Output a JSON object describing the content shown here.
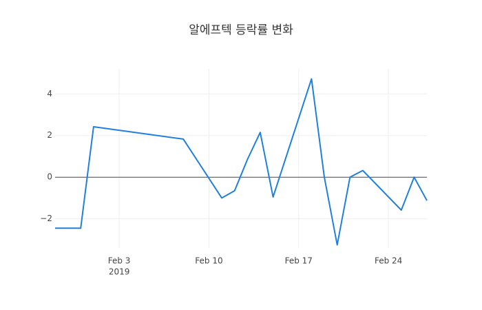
{
  "chart_data": {
    "type": "line",
    "title": "알에프텍 등락률 변화",
    "x": [
      "2019-01-29",
      "2019-01-31",
      "2019-02-01",
      "2019-02-08",
      "2019-02-11",
      "2019-02-12",
      "2019-02-13",
      "2019-02-14",
      "2019-02-15",
      "2019-02-18",
      "2019-02-19",
      "2019-02-20",
      "2019-02-21",
      "2019-02-22",
      "2019-02-25",
      "2019-02-26",
      "2019-02-27"
    ],
    "series": [
      {
        "color": "#1f7fdc",
        "values": [
          -2.45,
          -2.45,
          2.42,
          1.83,
          -1.0,
          -0.65,
          0.85,
          2.15,
          -0.95,
          4.72,
          0,
          -3.25,
          0,
          0.32,
          -1.58,
          0,
          -1.12
        ]
      }
    ],
    "xlim": [
      "2019-01-29",
      "2019-02-27"
    ],
    "xticks": [
      {
        "value": "2019-02-03",
        "label": "Feb 3",
        "sublabel": "2019"
      },
      {
        "value": "2019-02-10",
        "label": "Feb 10"
      },
      {
        "value": "2019-02-17",
        "label": "Feb 17"
      },
      {
        "value": "2019-02-24",
        "label": "Feb 24"
      }
    ],
    "ylim": [
      -3.4,
      5.2
    ],
    "yticks": [
      {
        "value": -2,
        "label": "−2"
      },
      0,
      2,
      4
    ],
    "grid": true
  }
}
